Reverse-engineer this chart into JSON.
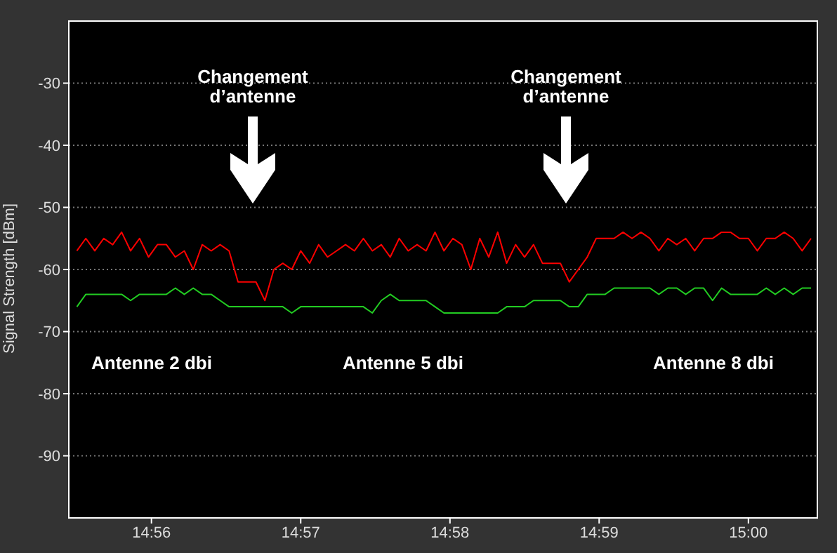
{
  "chart_data": {
    "type": "line",
    "ylabel": "Signal Strength [dBm]",
    "x": [
      14.925,
      14.926,
      14.927,
      14.928,
      14.929,
      14.93,
      14.931,
      14.932,
      14.933,
      14.934,
      14.935,
      14.936,
      14.937,
      14.938,
      14.939,
      14.94,
      14.941,
      14.942,
      14.943,
      14.944,
      14.945,
      14.946,
      14.947,
      14.948,
      14.949,
      14.95,
      14.951,
      14.952,
      14.953,
      14.954,
      14.955,
      14.956,
      14.957,
      14.958,
      14.959,
      14.96,
      14.961,
      14.962,
      14.963,
      14.964,
      14.965,
      14.966,
      14.967,
      14.968,
      14.969,
      14.97,
      14.971,
      14.972,
      14.973,
      14.974,
      14.975,
      14.976,
      14.977,
      14.978,
      14.979,
      14.98,
      14.981,
      14.982,
      14.983,
      14.984,
      14.985,
      14.986,
      14.987,
      14.988,
      14.989,
      14.99,
      14.991,
      14.992,
      14.993,
      14.994,
      14.995,
      14.996,
      14.997,
      14.998,
      14.999,
      15.0,
      15.001,
      15.002,
      15.003,
      15.004,
      15.005,
      15.006,
      15.007
    ],
    "series": [
      {
        "color": "#ff0000",
        "values": [
          -57,
          -55,
          -57,
          -55,
          -56,
          -54,
          -57,
          -55,
          -58,
          -56,
          -56,
          -58,
          -57,
          -60,
          -56,
          -57,
          -56,
          -57,
          -62,
          -62,
          -62,
          -65,
          -60,
          -59,
          -60,
          -57,
          -59,
          -56,
          -58,
          -57,
          -56,
          -57,
          -55,
          -57,
          -56,
          -58,
          -55,
          -57,
          -56,
          -57,
          -54,
          -57,
          -55,
          -56,
          -60,
          -55,
          -58,
          -54,
          -59,
          -56,
          -58,
          -56,
          -59,
          -59,
          -59,
          -62,
          -60,
          -58,
          -55,
          -55,
          -55,
          -54,
          -55,
          -54,
          -55,
          -57,
          -55,
          -56,
          -55,
          -57,
          -55,
          -55,
          -54,
          -54,
          -55,
          -55,
          -57,
          -55,
          -55,
          -54,
          -55,
          -57,
          -55
        ]
      },
      {
        "color": "#22cc22",
        "values": [
          -66,
          -64,
          -64,
          -64,
          -64,
          -64,
          -65,
          -64,
          -64,
          -64,
          -64,
          -63,
          -64,
          -63,
          -64,
          -64,
          -65,
          -66,
          -66,
          -66,
          -66,
          -66,
          -66,
          -66,
          -67,
          -66,
          -66,
          -66,
          -66,
          -66,
          -66,
          -66,
          -66,
          -67,
          -65,
          -64,
          -65,
          -65,
          -65,
          -65,
          -66,
          -67,
          -67,
          -67,
          -67,
          -67,
          -67,
          -67,
          -66,
          -66,
          -66,
          -65,
          -65,
          -65,
          -65,
          -66,
          -66,
          -64,
          -64,
          -64,
          -63,
          -63,
          -63,
          -63,
          -63,
          -64,
          -63,
          -63,
          -64,
          -63,
          -63,
          -65,
          -63,
          -64,
          -64,
          -64,
          -64,
          -63,
          -64,
          -63,
          -64,
          -63,
          -63
        ]
      }
    ],
    "xlim": [
      14.9241,
      15.0077
    ],
    "xticks": [
      {
        "value": 14.93333,
        "label": "14:56"
      },
      {
        "value": 14.95,
        "label": "14:57"
      },
      {
        "value": 14.96667,
        "label": "14:58"
      },
      {
        "value": 14.98333,
        "label": "14:59"
      },
      {
        "value": 15.0,
        "label": "15:00"
      }
    ],
    "ylim": [
      -100,
      -20
    ],
    "yticks": [
      -90,
      -80,
      -70,
      -60,
      -50,
      -40,
      -30
    ],
    "grid": "y",
    "marker": "none",
    "line_style": "solid",
    "annotations": [
      "Changement\nd’antenne",
      "Changement\nd’antenne",
      "Antenne 2 dbi",
      "Antenne 5 dbi",
      "Antenne 8 dbi"
    ]
  }
}
